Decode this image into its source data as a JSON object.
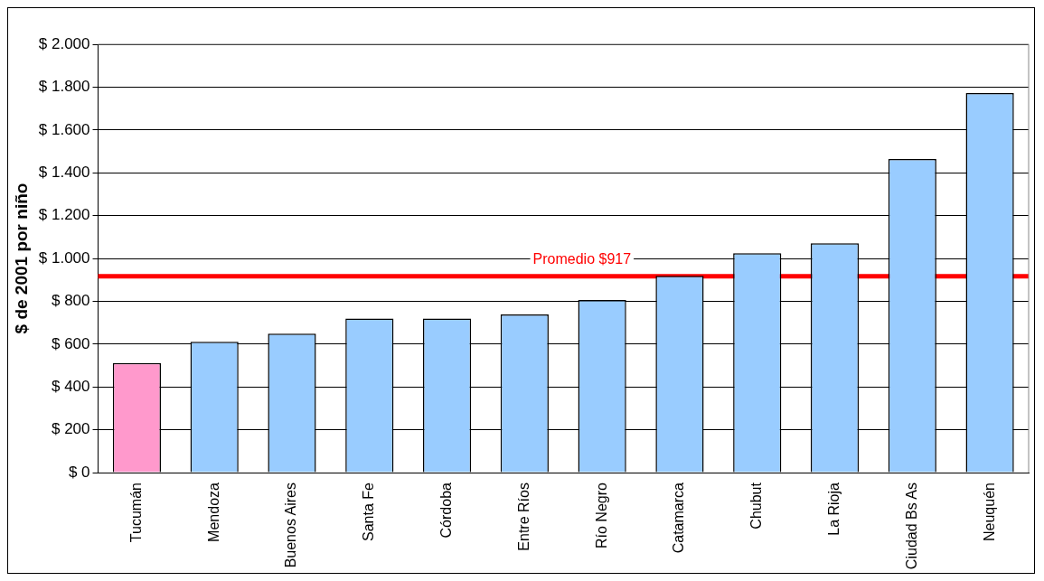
{
  "chart_data": {
    "type": "bar",
    "ylabel": "$ de 2001 por niño",
    "categories": [
      "Tucumán",
      "Mendoza",
      "Buenos Aires",
      "Santa Fe",
      "Córdoba",
      "Entre Ríos",
      "Río Negro",
      "Catamarca",
      "Chubut",
      "La Rioja",
      "Ciudad Bs As",
      "Neuquén"
    ],
    "values": [
      512,
      611,
      649,
      720,
      720,
      739,
      806,
      919,
      1024,
      1071,
      1464,
      1772
    ],
    "colors": [
      "#ff99cc",
      "#99ccff",
      "#99ccff",
      "#99ccff",
      "#99ccff",
      "#99ccff",
      "#99ccff",
      "#99ccff",
      "#99ccff",
      "#99ccff",
      "#99ccff",
      "#99ccff"
    ],
    "ylim": [
      0,
      2000
    ],
    "yticks": [
      {
        "value": 0,
        "label": "$ 0"
      },
      {
        "value": 200,
        "label": "$ 200"
      },
      {
        "value": 400,
        "label": "$ 400"
      },
      {
        "value": 600,
        "label": "$ 600"
      },
      {
        "value": 800,
        "label": "$ 800"
      },
      {
        "value": 1000,
        "label": "$ 1.000"
      },
      {
        "value": 1200,
        "label": "$ 1.200"
      },
      {
        "value": 1400,
        "label": "$ 1.400"
      },
      {
        "value": 1600,
        "label": "$ 1.600"
      },
      {
        "value": 1800,
        "label": "$ 1.800"
      },
      {
        "value": 2000,
        "label": "$ 2.000"
      }
    ],
    "ref_lines": [
      {
        "axis": "y",
        "value": 917,
        "label": "Promedio $917",
        "color": "#ff0000"
      }
    ],
    "grid": "y",
    "legend": false
  }
}
